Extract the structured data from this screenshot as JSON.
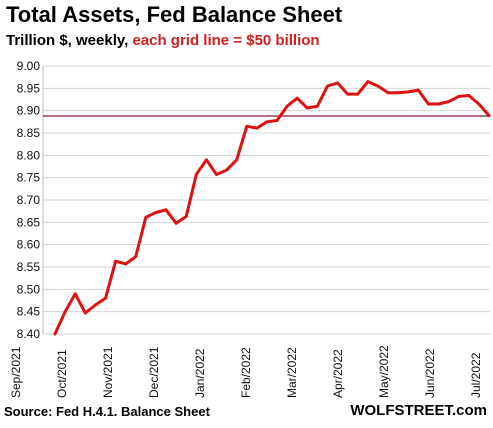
{
  "title": "Total Assets, Fed Balance Sheet",
  "subtitle": {
    "prefix": "Trillion $, weekly, ",
    "accent": "each grid line = $50 billion"
  },
  "footer": {
    "source": "Source: Fed H.4.1. Balance Sheet",
    "brand": "WOLFSTREET.com"
  },
  "colors": {
    "line": "#dd1111",
    "reference_line": "#7a1a3a",
    "grid": "#d4d4d4"
  },
  "chart_data": {
    "type": "line",
    "title": "Total Assets, Fed Balance Sheet",
    "ylabel": "Trillion $",
    "ylim": [
      8.4,
      9.0
    ],
    "yticks": [
      "8.40",
      "8.45",
      "8.50",
      "8.55",
      "8.60",
      "8.65",
      "8.70",
      "8.75",
      "8.80",
      "8.85",
      "8.90",
      "8.95",
      "9.00"
    ],
    "xticks": [
      "Sep/2021",
      "Oct/2021",
      "Nov/2021",
      "Dec/2021",
      "Jan/2022",
      "Feb/2022",
      "Mar/2022",
      "Apr/2022",
      "May/2022",
      "Jun/2022",
      "Jul/2022"
    ],
    "grid": true,
    "reference_line": 8.888,
    "series": [
      {
        "values": [
          8.4,
          8.45,
          8.49,
          8.447,
          8.465,
          8.48,
          8.563,
          8.557,
          8.573,
          8.661,
          8.672,
          8.678,
          8.648,
          8.663,
          8.757,
          8.79,
          8.757,
          8.767,
          8.79,
          8.865,
          8.861,
          8.875,
          8.878,
          8.91,
          8.928,
          8.906,
          8.91,
          8.955,
          8.962,
          8.937,
          8.937,
          8.965,
          8.955,
          8.94,
          8.94,
          8.942,
          8.946,
          8.915,
          8.915,
          8.92,
          8.932,
          8.934,
          8.915,
          8.889
        ]
      }
    ]
  }
}
